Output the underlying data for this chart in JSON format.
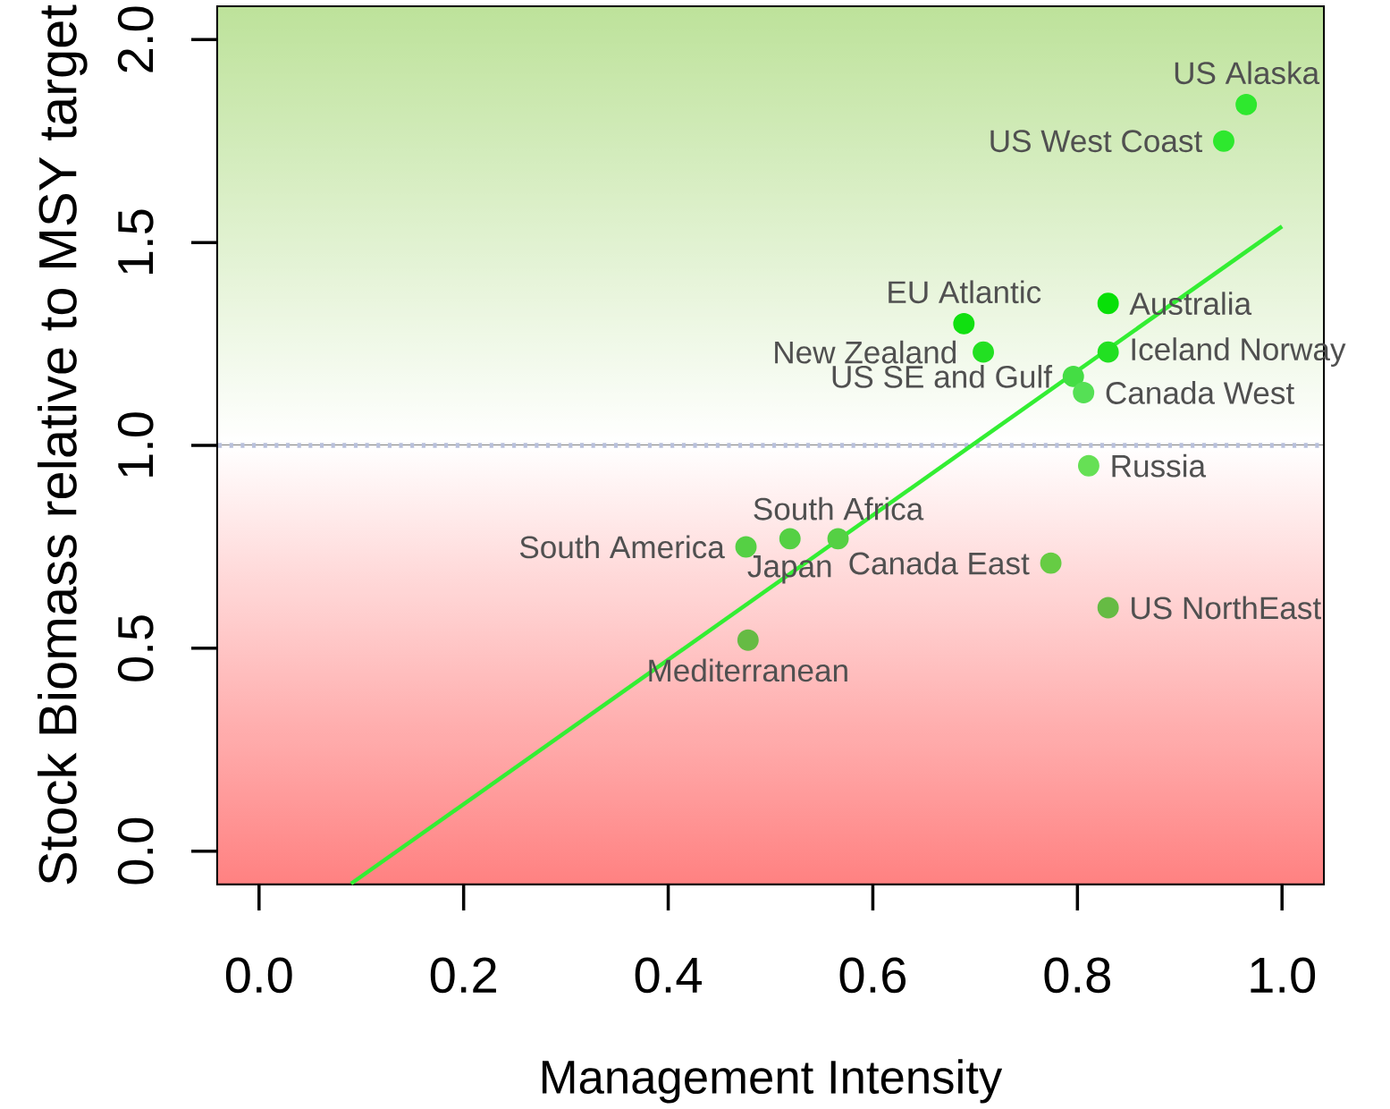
{
  "chart_data": {
    "type": "scatter",
    "xlabel": "Management Intensity",
    "ylabel": "Stock Biomass relative to MSY target",
    "xlim": [
      -0.04,
      1.04
    ],
    "ylim": [
      -0.08,
      2.08
    ],
    "xticks": [
      {
        "value": 0,
        "label": "0.0"
      },
      {
        "value": 0.2,
        "label": "0.2"
      },
      {
        "value": 0.4,
        "label": "0.4"
      },
      {
        "value": 0.6,
        "label": "0.6"
      },
      {
        "value": 0.8,
        "label": "0.8"
      },
      {
        "value": 1,
        "label": "1.0"
      }
    ],
    "yticks": [
      {
        "value": 0,
        "label": "0.0"
      },
      {
        "value": 0.5,
        "label": "0.5"
      },
      {
        "value": 1,
        "label": "1.0"
      },
      {
        "value": 1.5,
        "label": "1.5"
      },
      {
        "value": 2,
        "label": "2.0"
      }
    ],
    "series": [
      {
        "marker": "circle",
        "x": [
          0.965,
          0.943,
          0.689,
          0.83,
          0.708,
          0.83,
          0.796,
          0.806,
          0.811,
          0.566,
          0.519,
          0.476,
          0.774,
          0.83,
          0.478
        ],
        "values": [
          1.84,
          1.75,
          1.3,
          1.35,
          1.23,
          1.23,
          1.17,
          1.13,
          0.95,
          0.77,
          0.77,
          0.75,
          0.71,
          0.6,
          0.52
        ],
        "colors": [
          "#2ee82e",
          "#2ee82e",
          "#10e010",
          "#08e008",
          "#22e022",
          "#22e022",
          "#44dd44",
          "#55e055",
          "#66e055",
          "#55d044",
          "#55d044",
          "#55d044",
          "#66cc44",
          "#66bb44",
          "#66bb44"
        ]
      },
      {
        "type": "line",
        "x": [
          0.09,
          1.0
        ],
        "values": [
          -0.08,
          1.54
        ],
        "color": "#33ee33"
      }
    ],
    "ref_lines": [
      {
        "axis": "y",
        "value": 1,
        "color": "#b8c0dc",
        "line_style": "dotted"
      }
    ],
    "bands": [
      {
        "axis": "y",
        "from": 1,
        "to": 2.08,
        "color": "#bde29a"
      },
      {
        "axis": "y",
        "from": -0.08,
        "to": 1,
        "color": "#ff8282"
      }
    ],
    "annotations": [
      {
        "text": "US Alaska",
        "x": 0.965,
        "y": 1.84
      },
      {
        "text": "US West Coast",
        "x": 0.943,
        "y": 1.75
      },
      {
        "text": "EU Atlantic",
        "x": 0.689,
        "y": 1.3
      },
      {
        "text": "Australia",
        "x": 0.83,
        "y": 1.35
      },
      {
        "text": "New Zealand",
        "x": 0.708,
        "y": 1.23
      },
      {
        "text": "Iceland Norway",
        "x": 0.83,
        "y": 1.23
      },
      {
        "text": "US SE and Gulf",
        "x": 0.796,
        "y": 1.17
      },
      {
        "text": "Canada West",
        "x": 0.806,
        "y": 1.13
      },
      {
        "text": "Russia",
        "x": 0.811,
        "y": 0.95
      },
      {
        "text": "South Africa",
        "x": 0.566,
        "y": 0.77
      },
      {
        "text": "Japan",
        "x": 0.519,
        "y": 0.77
      },
      {
        "text": "South America",
        "x": 0.476,
        "y": 0.75
      },
      {
        "text": "Canada East",
        "x": 0.774,
        "y": 0.71
      },
      {
        "text": "US NorthEast",
        "x": 0.83,
        "y": 0.6
      },
      {
        "text": "Mediterranean",
        "x": 0.478,
        "y": 0.52
      }
    ]
  }
}
